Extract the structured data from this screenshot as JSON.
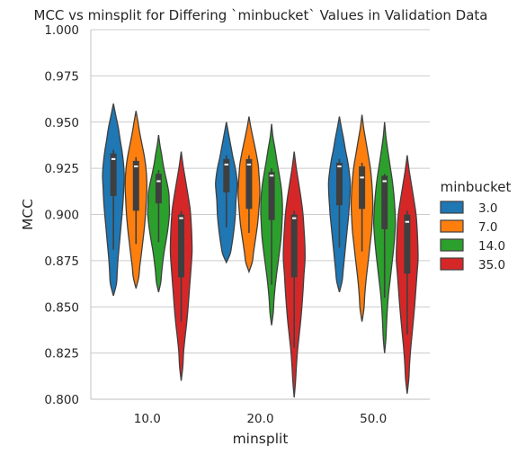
{
  "chart_data": {
    "type": "violin",
    "title": "MCC vs minsplit for Differing `minbucket` Values in Validation Data",
    "xlabel": "minsplit",
    "ylabel": "MCC",
    "ylim": [
      0.8,
      1.0
    ],
    "yticks": [
      "0.800",
      "0.825",
      "0.850",
      "0.875",
      "0.900",
      "0.925",
      "0.950",
      "0.975",
      "1.000"
    ],
    "categories": [
      "10.0",
      "20.0",
      "50.0"
    ],
    "grid": "horizontal",
    "legend": {
      "title": "minbucket",
      "placement": "right"
    },
    "series": [
      {
        "name": "3.0",
        "color": "#1f77b4",
        "groups": [
          {
            "min": 0.856,
            "q1": 0.91,
            "median": 0.93,
            "q3": 0.933,
            "max": 0.96,
            "whisker_lo": 0.881,
            "whisker_hi": 0.935,
            "shape": [
              0.28,
              0.35,
              0.42,
              0.52,
              0.62,
              0.72,
              0.82,
              0.9,
              0.95,
              1.0,
              0.93,
              0.8,
              0.62,
              0.45,
              0.22
            ]
          },
          {
            "min": 0.874,
            "q1": 0.912,
            "median": 0.927,
            "q3": 0.93,
            "max": 0.95,
            "whisker_lo": 0.893,
            "whisker_hi": 0.932,
            "shape": [
              0.35,
              0.5,
              0.62,
              0.72,
              0.8,
              0.85,
              0.88,
              0.95,
              1.0,
              0.92,
              0.78,
              0.6,
              0.45,
              0.3,
              0.15
            ]
          },
          {
            "min": 0.858,
            "q1": 0.905,
            "median": 0.926,
            "q3": 0.928,
            "max": 0.953,
            "whisker_lo": 0.882,
            "whisker_hi": 0.93,
            "shape": [
              0.25,
              0.35,
              0.45,
              0.55,
              0.65,
              0.75,
              0.85,
              0.92,
              0.98,
              1.0,
              0.9,
              0.75,
              0.55,
              0.38,
              0.18
            ]
          }
        ]
      },
      {
        "name": "7.0",
        "color": "#ff7f0e",
        "groups": [
          {
            "min": 0.86,
            "q1": 0.902,
            "median": 0.926,
            "q3": 0.929,
            "max": 0.956,
            "whisker_lo": 0.884,
            "whisker_hi": 0.931,
            "shape": [
              0.25,
              0.35,
              0.48,
              0.6,
              0.72,
              0.82,
              0.9,
              0.95,
              1.0,
              0.98,
              0.9,
              0.75,
              0.55,
              0.35,
              0.18
            ]
          },
          {
            "min": 0.869,
            "q1": 0.903,
            "median": 0.927,
            "q3": 0.93,
            "max": 0.953,
            "whisker_lo": 0.89,
            "whisker_hi": 0.932,
            "shape": [
              0.3,
              0.42,
              0.55,
              0.68,
              0.8,
              0.88,
              0.95,
              1.0,
              0.98,
              0.92,
              0.85,
              0.7,
              0.52,
              0.33,
              0.15
            ]
          },
          {
            "min": 0.842,
            "q1": 0.903,
            "median": 0.92,
            "q3": 0.926,
            "max": 0.954,
            "whisker_lo": 0.88,
            "whisker_hi": 0.928,
            "shape": [
              0.18,
              0.25,
              0.35,
              0.48,
              0.62,
              0.75,
              0.88,
              0.95,
              1.0,
              0.96,
              0.88,
              0.75,
              0.55,
              0.35,
              0.15
            ]
          }
        ]
      },
      {
        "name": "14.0",
        "color": "#2ca02c",
        "groups": [
          {
            "min": 0.858,
            "q1": 0.906,
            "median": 0.918,
            "q3": 0.922,
            "max": 0.943,
            "whisker_lo": 0.885,
            "whisker_hi": 0.924,
            "shape": [
              0.2,
              0.28,
              0.38,
              0.5,
              0.65,
              0.8,
              0.92,
              1.0,
              0.98,
              0.95,
              0.8,
              0.6,
              0.42,
              0.28,
              0.12
            ]
          },
          {
            "min": 0.84,
            "q1": 0.897,
            "median": 0.921,
            "q3": 0.923,
            "max": 0.949,
            "whisker_lo": 0.862,
            "whisker_hi": 0.925,
            "shape": [
              0.15,
              0.22,
              0.32,
              0.45,
              0.6,
              0.75,
              0.88,
              0.95,
              1.0,
              0.98,
              0.88,
              0.7,
              0.5,
              0.32,
              0.12
            ]
          },
          {
            "min": 0.825,
            "q1": 0.892,
            "median": 0.918,
            "q3": 0.921,
            "max": 0.95,
            "whisker_lo": 0.855,
            "whisker_hi": 0.922,
            "shape": [
              0.12,
              0.18,
              0.25,
              0.35,
              0.5,
              0.65,
              0.8,
              0.92,
              1.0,
              0.95,
              0.85,
              0.7,
              0.5,
              0.3,
              0.12
            ]
          }
        ]
      },
      {
        "name": "35.0",
        "color": "#d62728",
        "groups": [
          {
            "min": 0.81,
            "q1": 0.866,
            "median": 0.898,
            "q3": 0.9,
            "max": 0.934,
            "whisker_lo": 0.842,
            "whisker_hi": 0.902,
            "shape": [
              0.15,
              0.22,
              0.35,
              0.5,
              0.62,
              0.72,
              0.82,
              0.92,
              1.0,
              0.98,
              0.92,
              0.82,
              0.62,
              0.4,
              0.18
            ]
          },
          {
            "min": 0.801,
            "q1": 0.866,
            "median": 0.898,
            "q3": 0.9,
            "max": 0.934,
            "whisker_lo": 0.828,
            "whisker_hi": 0.902,
            "shape": [
              0.12,
              0.2,
              0.3,
              0.45,
              0.6,
              0.72,
              0.82,
              0.9,
              1.0,
              0.98,
              0.9,
              0.8,
              0.62,
              0.4,
              0.18
            ]
          },
          {
            "min": 0.803,
            "q1": 0.868,
            "median": 0.896,
            "q3": 0.9,
            "max": 0.932,
            "whisker_lo": 0.835,
            "whisker_hi": 0.902,
            "shape": [
              0.15,
              0.22,
              0.32,
              0.45,
              0.58,
              0.7,
              0.8,
              0.9,
              1.0,
              0.98,
              0.92,
              0.82,
              0.62,
              0.4,
              0.18
            ]
          }
        ]
      }
    ]
  }
}
